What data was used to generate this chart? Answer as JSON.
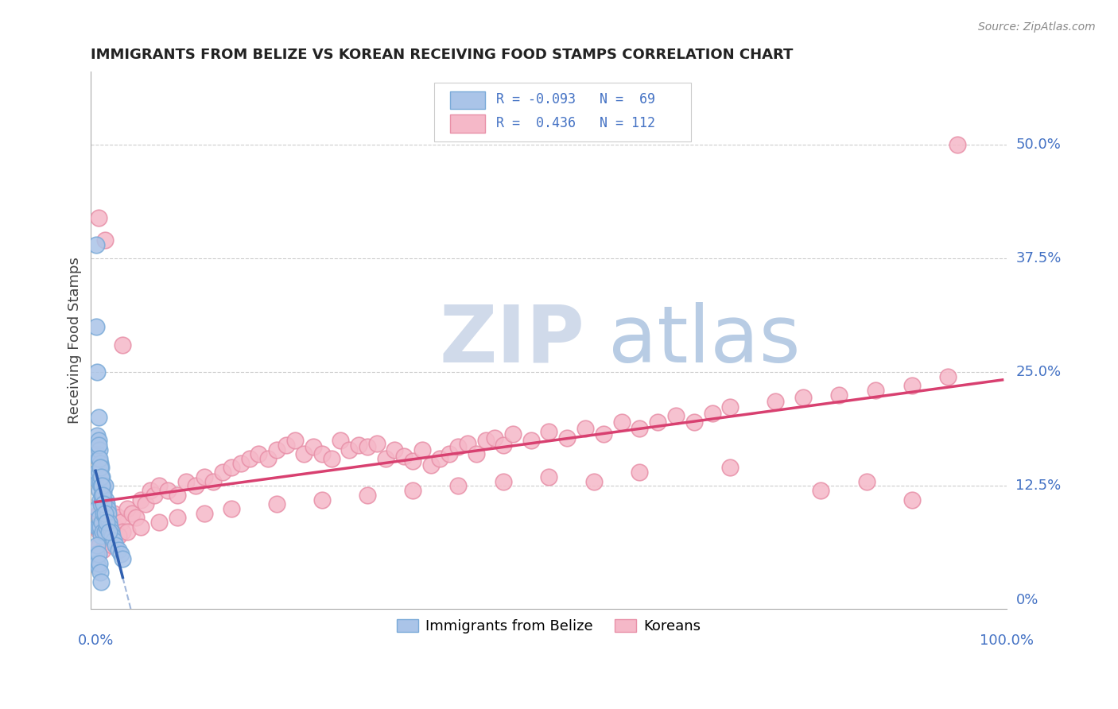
{
  "title": "IMMIGRANTS FROM BELIZE VS KOREAN RECEIVING FOOD STAMPS CORRELATION CHART",
  "source": "Source: ZipAtlas.com",
  "ylabel": "Receiving Food Stamps",
  "legend_belize": "Immigrants from Belize",
  "legend_korean": "Koreans",
  "R_belize": -0.093,
  "N_belize": 69,
  "R_korean": 0.436,
  "N_korean": 112,
  "belize_color": "#aac4e8",
  "belize_edge": "#7aaad8",
  "korean_color": "#f5b8c8",
  "korean_edge": "#e890a8",
  "belize_trend_color": "#3060b0",
  "korean_trend_color": "#d84070",
  "watermark_zip": "ZIP",
  "watermark_atlas": "atlas",
  "ytick_vals": [
    0.0,
    0.125,
    0.25,
    0.375,
    0.5
  ],
  "ytick_labels": [
    "0%",
    "12.5%",
    "25.0%",
    "37.5%",
    "50.0%"
  ],
  "xlim": [
    0.0,
    1.0
  ],
  "ylim": [
    0.0,
    0.55
  ],
  "belize_x": [
    0.001,
    0.001,
    0.002,
    0.002,
    0.002,
    0.002,
    0.002,
    0.003,
    0.003,
    0.003,
    0.003,
    0.003,
    0.004,
    0.004,
    0.004,
    0.004,
    0.005,
    0.005,
    0.005,
    0.005,
    0.006,
    0.006,
    0.006,
    0.006,
    0.007,
    0.007,
    0.007,
    0.008,
    0.008,
    0.008,
    0.009,
    0.009,
    0.01,
    0.01,
    0.01,
    0.011,
    0.011,
    0.012,
    0.012,
    0.013,
    0.014,
    0.015,
    0.016,
    0.017,
    0.018,
    0.02,
    0.022,
    0.025,
    0.028,
    0.03,
    0.001,
    0.002,
    0.002,
    0.003,
    0.003,
    0.004,
    0.005,
    0.006,
    0.007,
    0.008,
    0.009,
    0.01,
    0.012,
    0.015,
    0.002,
    0.003,
    0.004,
    0.005,
    0.006
  ],
  "belize_y": [
    0.39,
    0.05,
    0.18,
    0.16,
    0.14,
    0.1,
    0.08,
    0.2,
    0.175,
    0.155,
    0.13,
    0.08,
    0.165,
    0.14,
    0.12,
    0.09,
    0.15,
    0.13,
    0.11,
    0.08,
    0.145,
    0.125,
    0.105,
    0.07,
    0.135,
    0.115,
    0.085,
    0.125,
    0.108,
    0.075,
    0.118,
    0.095,
    0.125,
    0.105,
    0.075,
    0.11,
    0.09,
    0.105,
    0.08,
    0.1,
    0.095,
    0.085,
    0.08,
    0.075,
    0.07,
    0.065,
    0.06,
    0.055,
    0.05,
    0.045,
    0.3,
    0.25,
    0.04,
    0.17,
    0.035,
    0.155,
    0.145,
    0.135,
    0.125,
    0.115,
    0.105,
    0.095,
    0.085,
    0.075,
    0.06,
    0.05,
    0.04,
    0.03,
    0.02
  ],
  "korean_x": [
    0.002,
    0.003,
    0.004,
    0.005,
    0.006,
    0.007,
    0.008,
    0.009,
    0.01,
    0.011,
    0.012,
    0.013,
    0.015,
    0.017,
    0.02,
    0.022,
    0.025,
    0.028,
    0.03,
    0.035,
    0.04,
    0.045,
    0.05,
    0.055,
    0.06,
    0.065,
    0.07,
    0.08,
    0.09,
    0.1,
    0.11,
    0.12,
    0.13,
    0.14,
    0.15,
    0.16,
    0.17,
    0.18,
    0.19,
    0.2,
    0.21,
    0.22,
    0.23,
    0.24,
    0.25,
    0.26,
    0.27,
    0.28,
    0.29,
    0.3,
    0.31,
    0.32,
    0.33,
    0.34,
    0.35,
    0.36,
    0.37,
    0.38,
    0.39,
    0.4,
    0.41,
    0.42,
    0.43,
    0.44,
    0.45,
    0.46,
    0.48,
    0.5,
    0.52,
    0.54,
    0.56,
    0.58,
    0.6,
    0.62,
    0.64,
    0.66,
    0.68,
    0.7,
    0.75,
    0.78,
    0.82,
    0.86,
    0.9,
    0.94,
    0.004,
    0.008,
    0.012,
    0.018,
    0.025,
    0.035,
    0.05,
    0.07,
    0.09,
    0.12,
    0.15,
    0.2,
    0.25,
    0.3,
    0.35,
    0.4,
    0.45,
    0.5,
    0.55,
    0.6,
    0.7,
    0.8,
    0.85,
    0.9,
    0.95,
    0.003,
    0.01,
    0.03
  ],
  "korean_y": [
    0.08,
    0.095,
    0.075,
    0.09,
    0.085,
    0.1,
    0.07,
    0.095,
    0.08,
    0.065,
    0.09,
    0.075,
    0.085,
    0.07,
    0.095,
    0.08,
    0.09,
    0.085,
    0.075,
    0.1,
    0.095,
    0.09,
    0.11,
    0.105,
    0.12,
    0.115,
    0.125,
    0.12,
    0.115,
    0.13,
    0.125,
    0.135,
    0.13,
    0.14,
    0.145,
    0.15,
    0.155,
    0.16,
    0.155,
    0.165,
    0.17,
    0.175,
    0.16,
    0.168,
    0.16,
    0.155,
    0.175,
    0.165,
    0.17,
    0.168,
    0.172,
    0.155,
    0.165,
    0.158,
    0.152,
    0.165,
    0.148,
    0.155,
    0.16,
    0.168,
    0.172,
    0.16,
    0.175,
    0.178,
    0.17,
    0.182,
    0.175,
    0.185,
    0.178,
    0.188,
    0.182,
    0.195,
    0.188,
    0.195,
    0.202,
    0.195,
    0.205,
    0.212,
    0.218,
    0.222,
    0.225,
    0.23,
    0.235,
    0.245,
    0.06,
    0.055,
    0.065,
    0.06,
    0.07,
    0.075,
    0.08,
    0.085,
    0.09,
    0.095,
    0.1,
    0.105,
    0.11,
    0.115,
    0.12,
    0.125,
    0.13,
    0.135,
    0.13,
    0.14,
    0.145,
    0.12,
    0.13,
    0.11,
    0.5,
    0.42,
    0.395,
    0.28
  ]
}
